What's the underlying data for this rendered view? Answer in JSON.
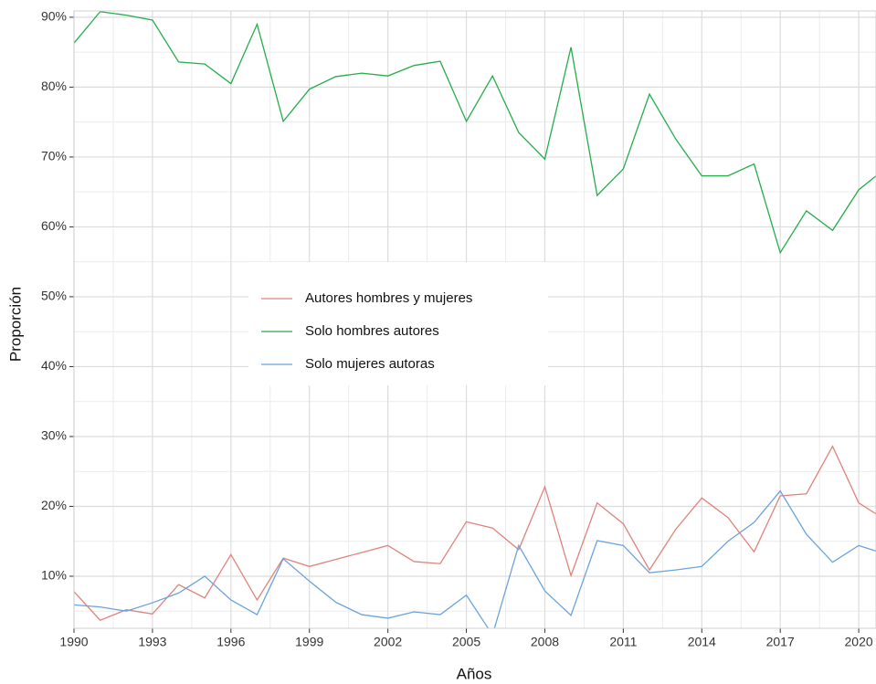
{
  "chart_data": {
    "type": "line",
    "x_label": "Años",
    "y_label": "Proporción",
    "x": [
      1990,
      1991,
      1992,
      1993,
      1994,
      1995,
      1996,
      1997,
      1998,
      1999,
      2000,
      2001,
      2002,
      2003,
      2004,
      2005,
      2006,
      2007,
      2008,
      2009,
      2010,
      2011,
      2012,
      2013,
      2014,
      2015,
      2016,
      2017,
      2018,
      2019,
      2020,
      2021
    ],
    "series": [
      {
        "name": "Autores hombres y mujeres",
        "color": "#e0837b",
        "values": [
          7.8,
          3.7,
          5.2,
          4.6,
          8.8,
          6.9,
          13.1,
          6.6,
          12.6,
          11.4,
          12.4,
          13.4,
          14.4,
          12.1,
          11.8,
          17.8,
          16.9,
          13.8,
          22.8,
          10.1,
          20.5,
          17.5,
          10.9,
          16.7,
          21.2,
          18.4,
          13.5,
          21.5,
          21.8,
          28.6,
          20.5,
          18.1
        ]
      },
      {
        "name": "Solo hombres autores",
        "color": "#24ad4b",
        "values": [
          86.3,
          90.8,
          90.3,
          89.6,
          83.6,
          83.3,
          80.5,
          89.0,
          75.1,
          79.7,
          81.5,
          82.0,
          81.6,
          83.1,
          83.7,
          75.1,
          81.6,
          73.5,
          69.7,
          85.7,
          64.5,
          68.3,
          79.0,
          72.6,
          67.3,
          67.3,
          69.0,
          56.3,
          62.3,
          59.5,
          65.3,
          68.3
        ]
      },
      {
        "name": "Solo mujeres autoras",
        "color": "#6ba3dc",
        "values": [
          5.9,
          5.6,
          5.0,
          6.2,
          7.6,
          10.0,
          6.6,
          4.5,
          12.5,
          9.3,
          6.3,
          4.5,
          4.0,
          4.9,
          4.5,
          7.3,
          1.6,
          14.4,
          7.9,
          4.4,
          15.1,
          14.4,
          10.5,
          10.9,
          11.4,
          15.0,
          17.7,
          22.2,
          16.0,
          12.0,
          14.4,
          13.2
        ]
      }
    ],
    "xlim": [
      1990,
      2020.66
    ],
    "xticks": [
      1990,
      1993,
      1996,
      1999,
      2002,
      2005,
      2008,
      2011,
      2014,
      2017,
      2020
    ],
    "ylim": [
      2.55,
      90.9
    ],
    "yticks": [
      {
        "value": 10,
        "label": "10%"
      },
      {
        "value": 20,
        "label": "20%"
      },
      {
        "value": 30,
        "label": "30%"
      },
      {
        "value": 40,
        "label": "40%"
      },
      {
        "value": 50,
        "label": "50%"
      },
      {
        "value": 60,
        "label": "60%"
      },
      {
        "value": 70,
        "label": "70%"
      },
      {
        "value": 80,
        "label": "80%"
      },
      {
        "value": 90,
        "label": "90%"
      }
    ],
    "grid": true,
    "legend": "center"
  }
}
